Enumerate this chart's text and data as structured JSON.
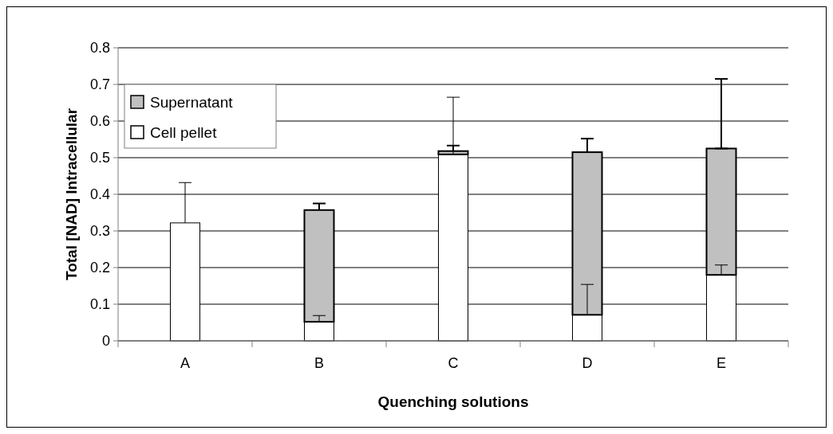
{
  "chart_data": {
    "type": "bar",
    "stacked": true,
    "xlabel": "Quenching solutions",
    "ylabel": "Total [NAD] Intracellular",
    "categories": [
      "A",
      "B",
      "C",
      "D",
      "E"
    ],
    "series": [
      {
        "name": "Cell pellet",
        "color": "#ffffff",
        "values": [
          0.322,
          0.052,
          0.509,
          0.071,
          0.18
        ],
        "errors": [
          [
            0.322,
            0.432
          ],
          [
            0.052,
            0.069
          ],
          [
            0.509,
            0.665
          ],
          [
            0.071,
            0.154
          ],
          [
            0.18,
            0.207
          ]
        ]
      },
      {
        "name": "Supernatant",
        "color": "#c0c0c0",
        "values": [
          null,
          0.305,
          0.009,
          0.444,
          0.345
        ],
        "errors": [
          null,
          [
            0.357,
            0.375
          ],
          [
            0.518,
            0.533
          ],
          [
            0.515,
            0.552
          ],
          [
            0.525,
            0.715
          ]
        ]
      }
    ],
    "ylim": [
      0,
      0.8
    ],
    "yticks": [
      0,
      0.1,
      0.2,
      0.3,
      0.4,
      0.5,
      0.6,
      0.7,
      0.8
    ],
    "grid": "y",
    "legend": "top left"
  }
}
